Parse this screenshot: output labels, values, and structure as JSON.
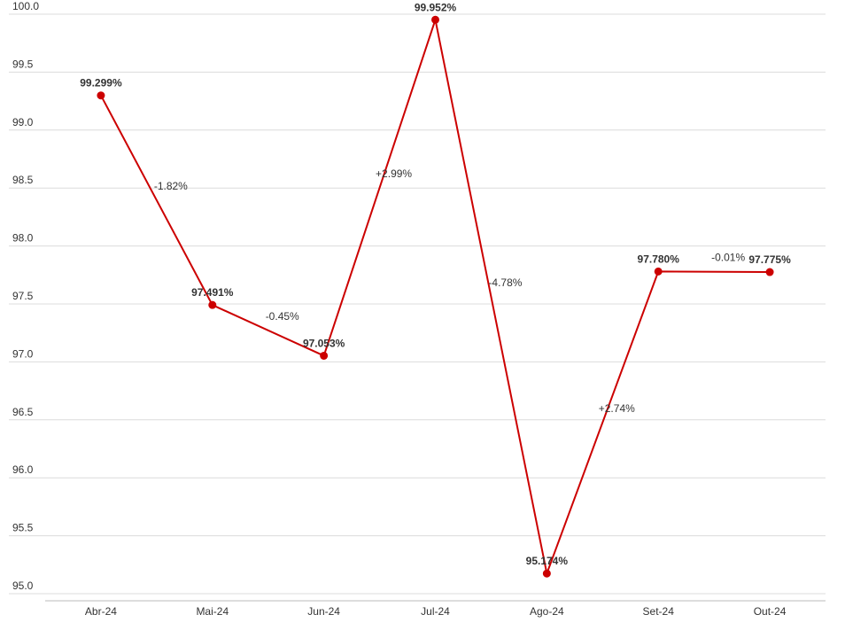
{
  "chart_data": {
    "type": "line",
    "categories": [
      "Abr-24",
      "Mai-24",
      "Jun-24",
      "Jul-24",
      "Ago-24",
      "Set-24",
      "Out-24"
    ],
    "values": [
      99.299,
      97.491,
      97.053,
      99.952,
      95.174,
      97.78,
      97.775
    ],
    "value_labels": [
      "99.299%",
      "97.491%",
      "97.053%",
      "99.952%",
      "95.174%",
      "97.780%",
      "97.775%"
    ],
    "change_labels": [
      "-1.82%",
      "-0.45%",
      "+2.99%",
      "-4.78%",
      "+2.74%",
      "-0.01%"
    ],
    "color": "#cc0000",
    "ylim": [
      95,
      100
    ],
    "yticks": [
      {
        "value": 95,
        "label": "95.0"
      },
      95.5,
      {
        "value": 96,
        "label": "96.0"
      },
      96.5,
      {
        "value": 97,
        "label": "97.0"
      },
      97.5,
      {
        "value": 98,
        "label": "98.0"
      },
      98.5,
      {
        "value": 99,
        "label": "99.0"
      },
      99.5,
      {
        "value": 100,
        "label": "100.0"
      }
    ],
    "grid": true
  }
}
